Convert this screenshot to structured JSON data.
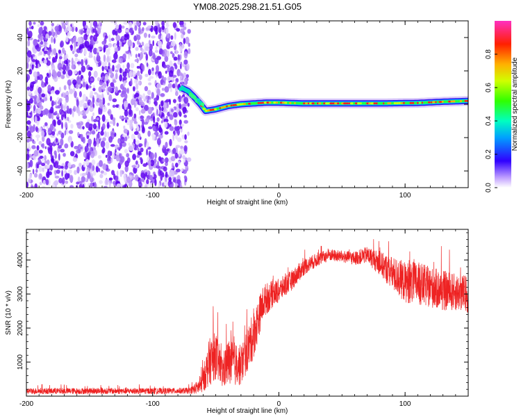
{
  "title": "YM08.2025.298.21.51.G05",
  "colors": {
    "snr_line": "#ee2222",
    "scatter_purple": "#6a10f0",
    "scatter_light": "#c9a8f5"
  },
  "chart_data": [
    {
      "type": "heatmap",
      "name": "spectrogram",
      "xlabel": "Height of straight line (km)",
      "ylabel": "Frequency (Hz)",
      "xlim": [
        -200,
        150
      ],
      "ylim": [
        -50,
        50
      ],
      "xticks": [
        -200,
        -100,
        0,
        100
      ],
      "xtick_labels": [
        "-200",
        "-100",
        "0",
        "100"
      ],
      "yticks": [
        -40,
        -20,
        0,
        20,
        40
      ],
      "ytick_labels": [
        "-40",
        "-20",
        "0",
        "20",
        "40"
      ],
      "noise_region_x": [
        -200,
        -75
      ],
      "signal_track": {
        "x": [
          -78,
          -72,
          -68,
          -62,
          -58,
          -50,
          -40,
          -30,
          -20,
          -10,
          0,
          20,
          50,
          80,
          110,
          130,
          150
        ],
        "frequency_hz": [
          10,
          8,
          5,
          0,
          -4,
          -3,
          -1,
          0,
          0.5,
          1,
          1,
          0.5,
          0.5,
          0.5,
          0.8,
          1.5,
          2
        ]
      },
      "colorbar": {
        "label": "Normalized spectral amplitude",
        "range": [
          0.0,
          1.0
        ],
        "ticks": [
          0.0,
          0.2,
          0.4,
          0.6,
          0.8
        ],
        "tick_labels": [
          "0.0",
          "0.2",
          "0.4",
          "0.6",
          "0.8"
        ]
      }
    },
    {
      "type": "line",
      "name": "snr",
      "xlabel": "Height of straight line (km)",
      "ylabel": "SNR (10 * v/v)",
      "xlim": [
        -200,
        150
      ],
      "ylim": [
        0,
        4900
      ],
      "xticks": [
        -200,
        -100,
        0,
        100
      ],
      "xtick_labels": [
        "-200",
        "-100",
        "0",
        "100"
      ],
      "yticks": [
        1000,
        2000,
        3000,
        4000
      ],
      "ytick_labels": [
        "1000",
        "2000",
        "3000",
        "4000"
      ],
      "envelope": {
        "x": [
          -200,
          -150,
          -100,
          -70,
          -62,
          -55,
          -50,
          -45,
          -40,
          -30,
          -20,
          -12,
          -5,
          0,
          10,
          20,
          30,
          40,
          50,
          60,
          70,
          80,
          90,
          100,
          110,
          120,
          130,
          140,
          150
        ],
        "mean": [
          150,
          150,
          150,
          160,
          300,
          1000,
          1200,
          700,
          1000,
          900,
          1800,
          2800,
          3000,
          3100,
          3400,
          3800,
          4000,
          4150,
          4100,
          4050,
          4150,
          3900,
          3600,
          3350,
          3300,
          3200,
          3100,
          3050,
          3000
        ],
        "spread": [
          90,
          90,
          90,
          90,
          250,
          700,
          700,
          500,
          700,
          600,
          700,
          500,
          400,
          350,
          300,
          250,
          200,
          180,
          180,
          200,
          250,
          350,
          500,
          600,
          650,
          600,
          600,
          550,
          550
        ]
      }
    }
  ]
}
